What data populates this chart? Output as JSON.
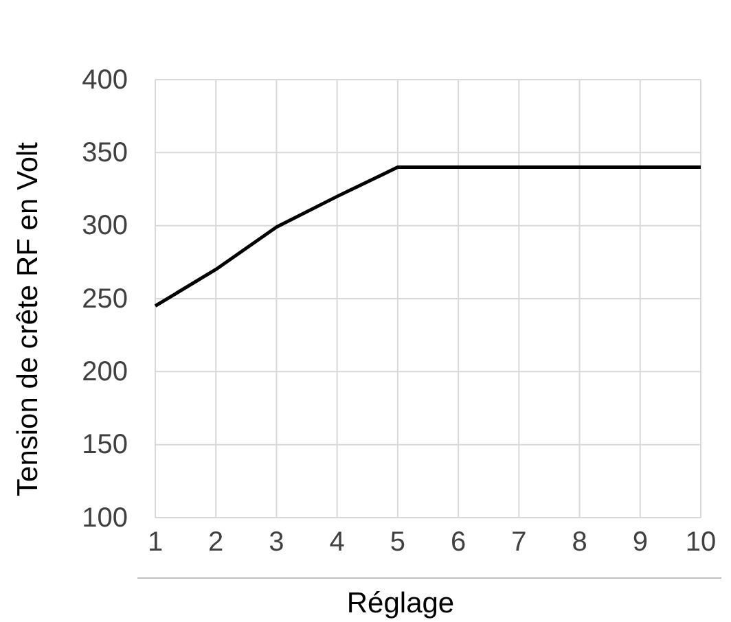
{
  "chart_data": {
    "type": "line",
    "xlabel": "Réglage",
    "ylabel": "Tension de crête RF en Volt",
    "x": [
      1,
      2,
      3,
      4,
      5,
      6,
      7,
      8,
      9,
      10
    ],
    "series": [
      {
        "color": "#000000",
        "values": [
          245,
          270,
          299,
          320,
          340,
          340,
          340,
          340,
          340,
          340
        ]
      }
    ],
    "xlim": [
      1,
      10
    ],
    "xticks": [
      1,
      2,
      3,
      4,
      5,
      6,
      7,
      8,
      9,
      10
    ],
    "ylim": [
      100,
      400
    ],
    "yticks": [
      100,
      150,
      200,
      250,
      300,
      350,
      400
    ],
    "grid": true,
    "marker": "none",
    "line_style": "solid"
  }
}
